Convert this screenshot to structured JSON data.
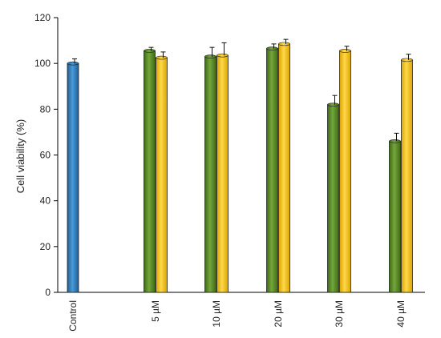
{
  "chart_data": {
    "type": "bar",
    "title": "",
    "xlabel": "",
    "ylabel": "Cell viability (%)",
    "ylim": [
      0,
      120
    ],
    "yticks": [
      0,
      20,
      40,
      60,
      80,
      100,
      120
    ],
    "grid": false,
    "legend": "none",
    "categories": [
      "Control",
      "5 µM",
      "10 µM",
      "20 µM",
      "30 µM",
      "40 µM"
    ],
    "series": [
      {
        "color": "#2f7fbf",
        "values": [
          100,
          null,
          null,
          null,
          null,
          null
        ],
        "errors": [
          2,
          null,
          null,
          null,
          null,
          null
        ]
      },
      {
        "color": "#5a8a2a",
        "values": [
          null,
          105.5,
          103,
          106.5,
          82,
          66
        ],
        "errors": [
          null,
          1.5,
          4,
          2,
          4,
          3.5
        ]
      },
      {
        "color": "#f5c400",
        "values": [
          null,
          102.5,
          103.5,
          108.5,
          105.5,
          101.5
        ],
        "errors": [
          null,
          2.5,
          5.5,
          2,
          2,
          2.5
        ]
      }
    ]
  }
}
